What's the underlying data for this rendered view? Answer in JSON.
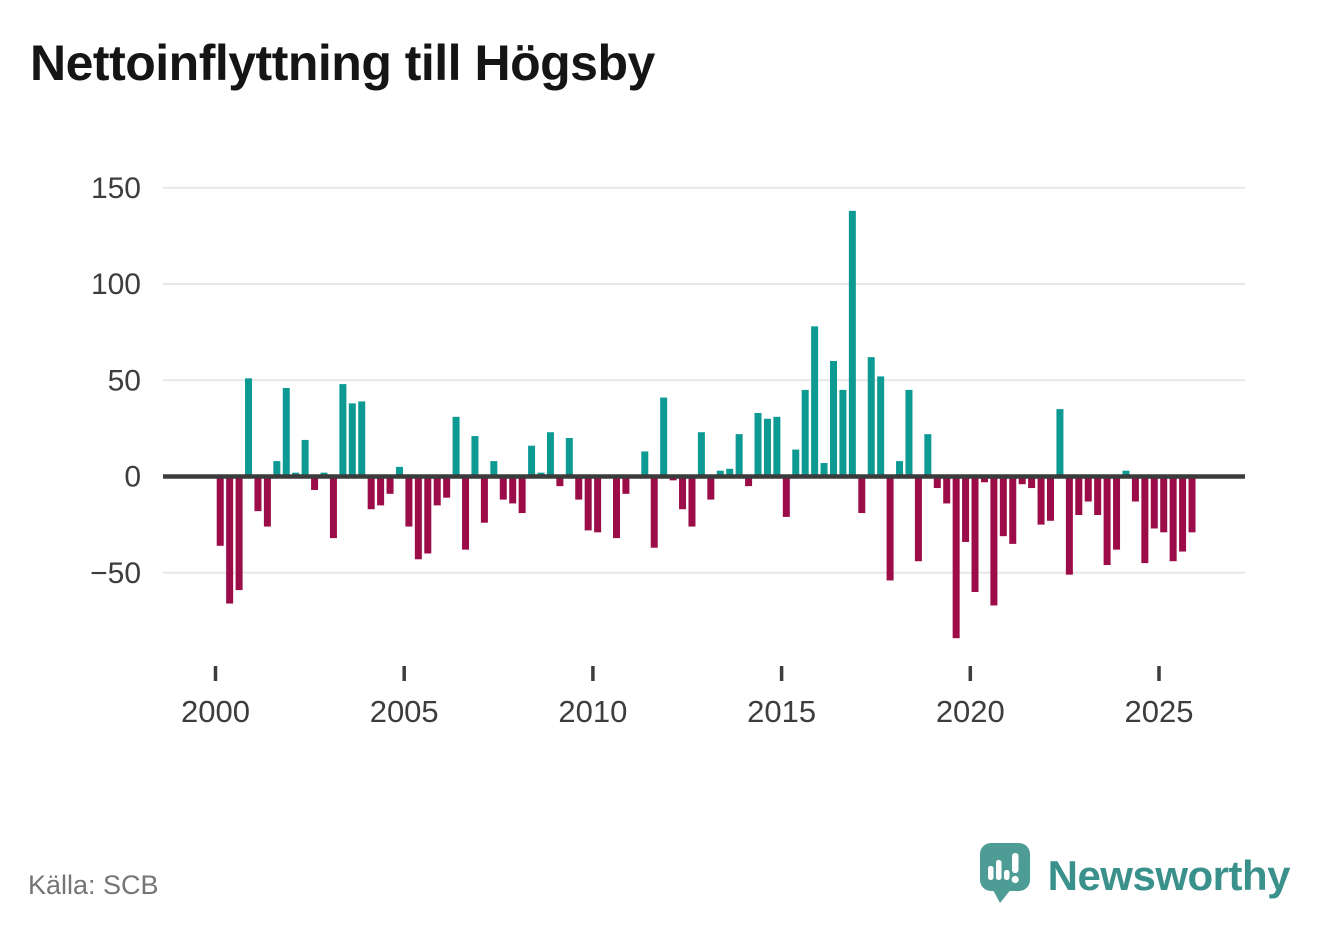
{
  "title": "Nettoinflyttning till Högsby",
  "source": "Källa: SCB",
  "brand": {
    "name": "Newsworthy"
  },
  "colors": {
    "positive": "#0D9A93",
    "negative": "#9B0C48",
    "axis": "#3B3B3B",
    "grid": "#E7E7E7",
    "tick_label": "#3D3D3D",
    "title_text": "#151515",
    "source_text": "#757575",
    "logo_bubble": "#4E9C96",
    "logo_text": "#3A918B"
  },
  "chart_data": {
    "type": "bar",
    "title": "Nettoinflyttning till Högsby",
    "frequency": "quarterly",
    "start_year": 2000,
    "x_tick_labels": [
      "2000",
      "2005",
      "2010",
      "2015",
      "2020",
      "2025"
    ],
    "y_ticks": [
      {
        "value": 150,
        "label": "150"
      },
      {
        "value": 100,
        "label": "100"
      },
      {
        "value": 50,
        "label": "50"
      },
      {
        "value": 0,
        "label": "0"
      },
      {
        "value": -50,
        "label": "−50"
      }
    ],
    "ylim": [
      -90,
      155
    ],
    "grid": true,
    "legend": "none",
    "series": [
      {
        "year": 2000,
        "values": [
          -36,
          -66,
          -59,
          51
        ]
      },
      {
        "year": 2001,
        "values": [
          -18,
          -26,
          8,
          46
        ]
      },
      {
        "year": 2002,
        "values": [
          2,
          19,
          -7,
          2
        ]
      },
      {
        "year": 2003,
        "values": [
          -32,
          48,
          38,
          39
        ]
      },
      {
        "year": 2004,
        "values": [
          -17,
          -15,
          -9,
          5
        ]
      },
      {
        "year": 2005,
        "values": [
          -26,
          -43,
          -40,
          -15
        ]
      },
      {
        "year": 2006,
        "values": [
          -11,
          31,
          -38,
          21
        ]
      },
      {
        "year": 2007,
        "values": [
          -24,
          8,
          -12,
          -14
        ]
      },
      {
        "year": 2008,
        "values": [
          -19,
          16,
          2,
          23
        ]
      },
      {
        "year": 2009,
        "values": [
          -5,
          20,
          -12,
          -28
        ]
      },
      {
        "year": 2010,
        "values": [
          -29,
          0,
          -32,
          -9
        ]
      },
      {
        "year": 2011,
        "values": [
          0,
          13,
          -37,
          41
        ]
      },
      {
        "year": 2012,
        "values": [
          -2,
          -17,
          -26,
          23
        ]
      },
      {
        "year": 2013,
        "values": [
          -12,
          3,
          4,
          22
        ]
      },
      {
        "year": 2014,
        "values": [
          -5,
          33,
          30,
          31
        ]
      },
      {
        "year": 2015,
        "values": [
          -21,
          14,
          45,
          78
        ]
      },
      {
        "year": 2016,
        "values": [
          7,
          60,
          45,
          138
        ]
      },
      {
        "year": 2017,
        "values": [
          -19,
          62,
          52,
          -54
        ]
      },
      {
        "year": 2018,
        "values": [
          8,
          45,
          -44,
          22
        ]
      },
      {
        "year": 2019,
        "values": [
          -6,
          -14,
          -84,
          -34
        ]
      },
      {
        "year": 2020,
        "values": [
          -60,
          -3,
          -67,
          -31
        ]
      },
      {
        "year": 2021,
        "values": [
          -35,
          -4,
          -6,
          -25
        ]
      },
      {
        "year": 2022,
        "values": [
          -23,
          35,
          -51,
          -20
        ]
      },
      {
        "year": 2023,
        "values": [
          -13,
          -20,
          -46,
          -38
        ]
      },
      {
        "year": 2024,
        "values": [
          3,
          -13,
          -45,
          -27
        ]
      },
      {
        "year": 2025,
        "values": [
          -29,
          -44,
          -39,
          -29
        ]
      }
    ]
  }
}
